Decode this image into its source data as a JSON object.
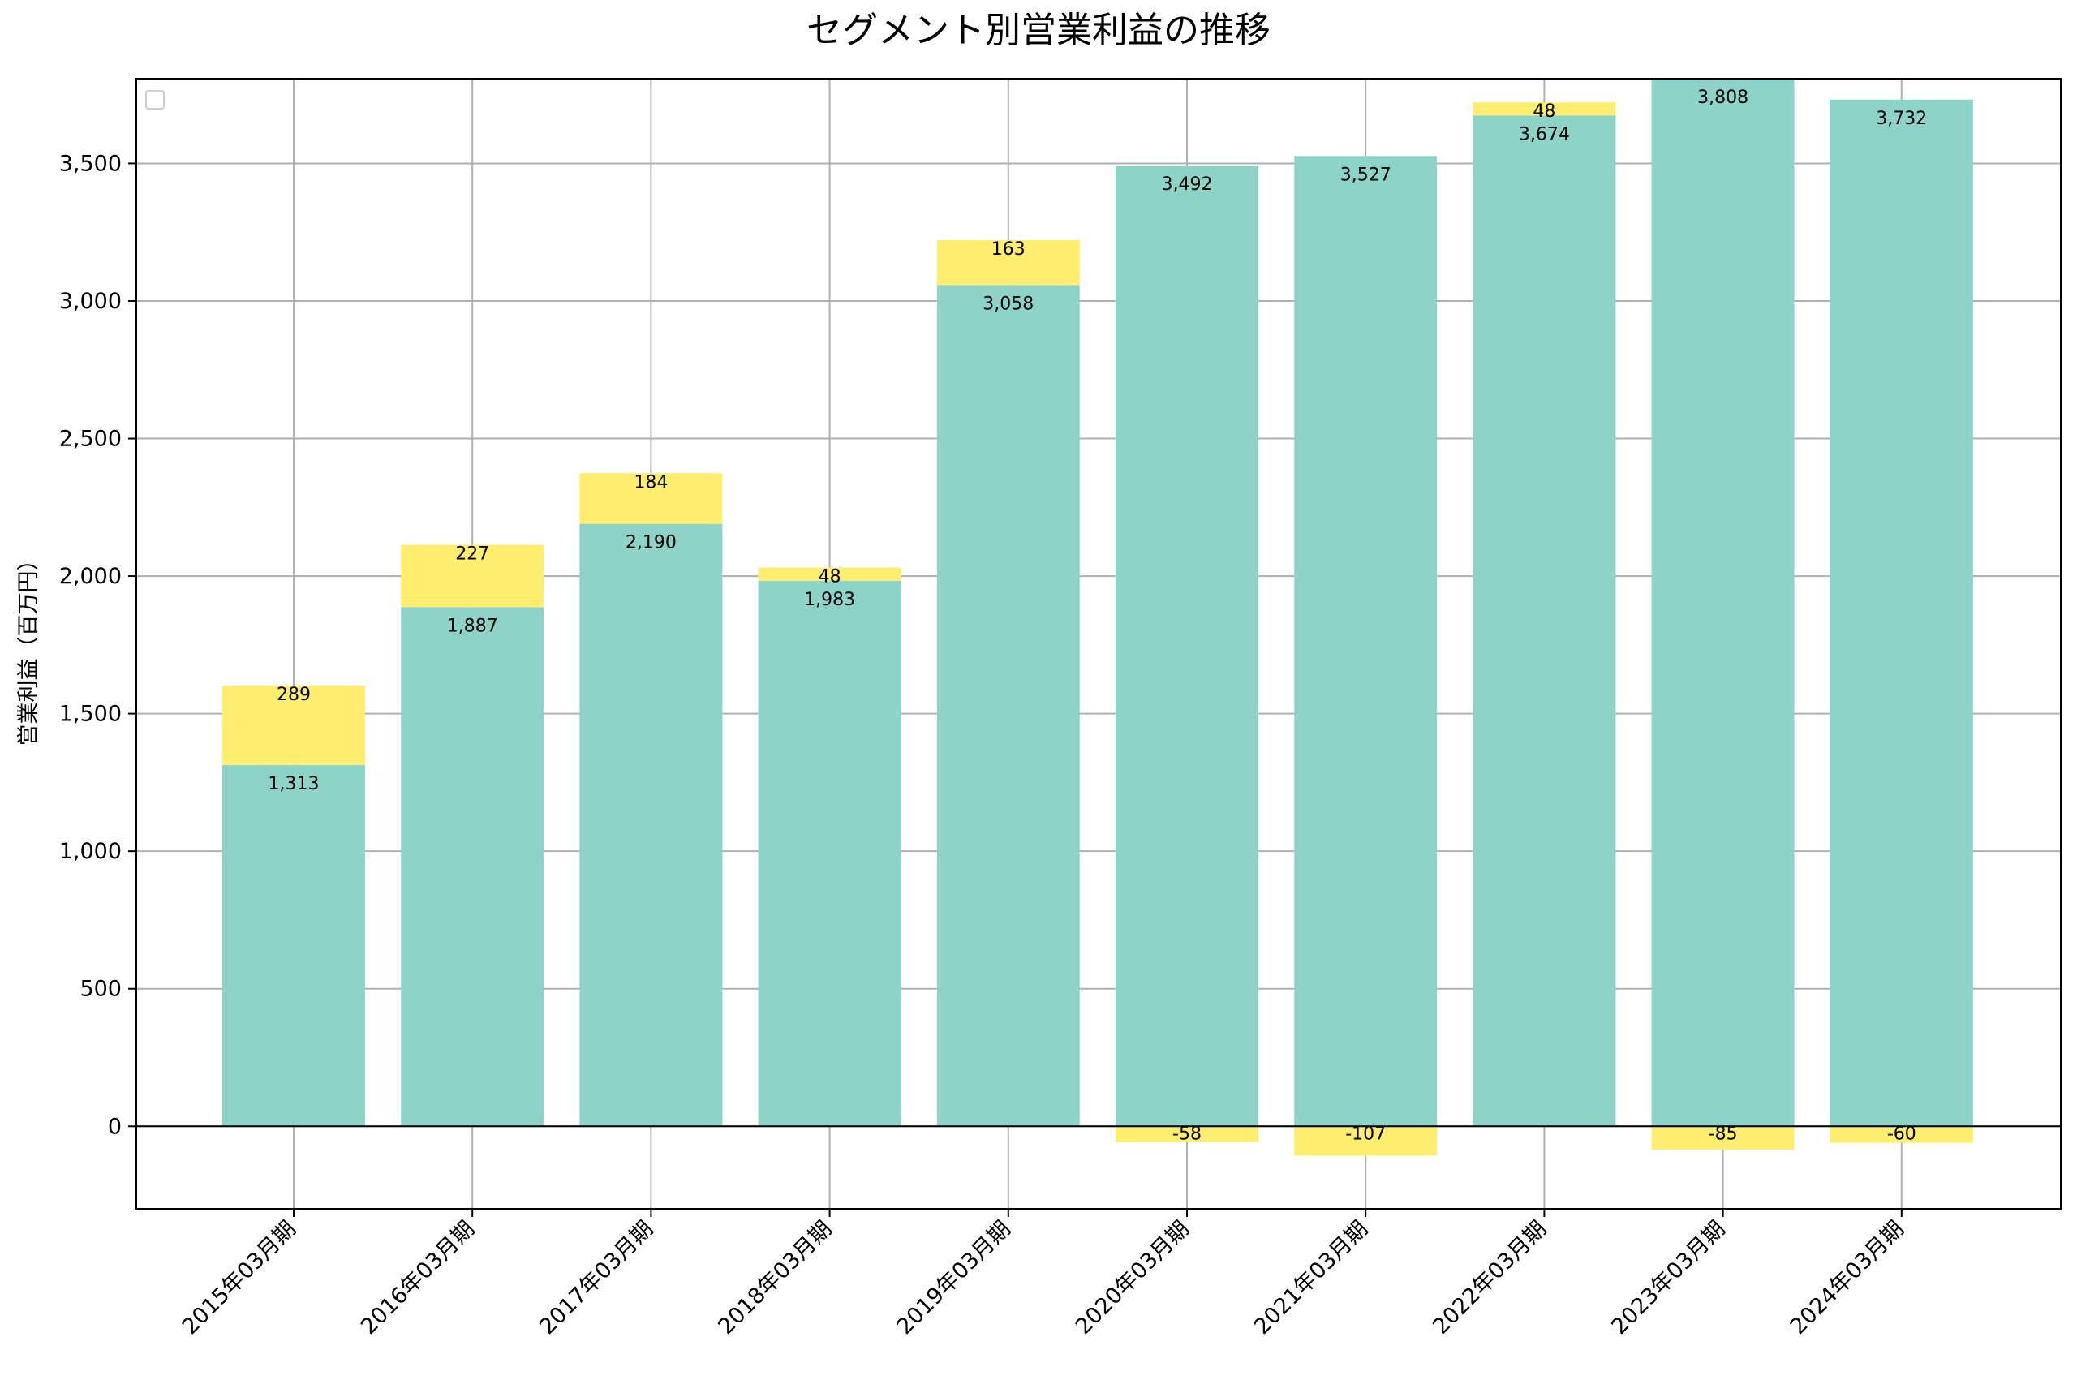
{
  "chart_data": {
    "type": "bar",
    "stacked": true,
    "title": "セグメント別営業利益の推移",
    "ylabel": "営業利益（百万円）",
    "xlabel": "",
    "categories": [
      "2015年03月期",
      "2016年03月期",
      "2017年03月期",
      "2018年03月期",
      "2019年03月期",
      "2020年03月期",
      "2021年03月期",
      "2022年03月期",
      "2023年03月期",
      "2024年03月期"
    ],
    "series": [
      {
        "color": "#8ed3c7",
        "values": [
          1313,
          1887,
          2190,
          1983,
          3058,
          3492,
          3527,
          3674,
          3808,
          3732
        ]
      },
      {
        "color": "#ffed6f",
        "values": [
          289,
          227,
          184,
          48,
          163,
          -58,
          -107,
          48,
          -85,
          -60
        ]
      }
    ],
    "data_labels": {
      "series0": [
        "1,313",
        "1,887",
        "2,190",
        "1,983",
        "3,058",
        "3,492",
        "3,527",
        "3,674",
        "3,808",
        "3,732"
      ],
      "series1": [
        "289",
        "227",
        "184",
        "48",
        "163",
        "-58",
        "-107",
        "48",
        "-85",
        "-60"
      ]
    },
    "ylim": [
      -300,
      3808
    ],
    "yticks": [
      0,
      500,
      1000,
      1500,
      2000,
      2500,
      3000,
      3500
    ],
    "ytick_labels": [
      "0",
      "500",
      "1,000",
      "1,500",
      "2,000",
      "2,500",
      "3,000",
      "3,500"
    ],
    "grid": true,
    "legend": "top-left"
  }
}
